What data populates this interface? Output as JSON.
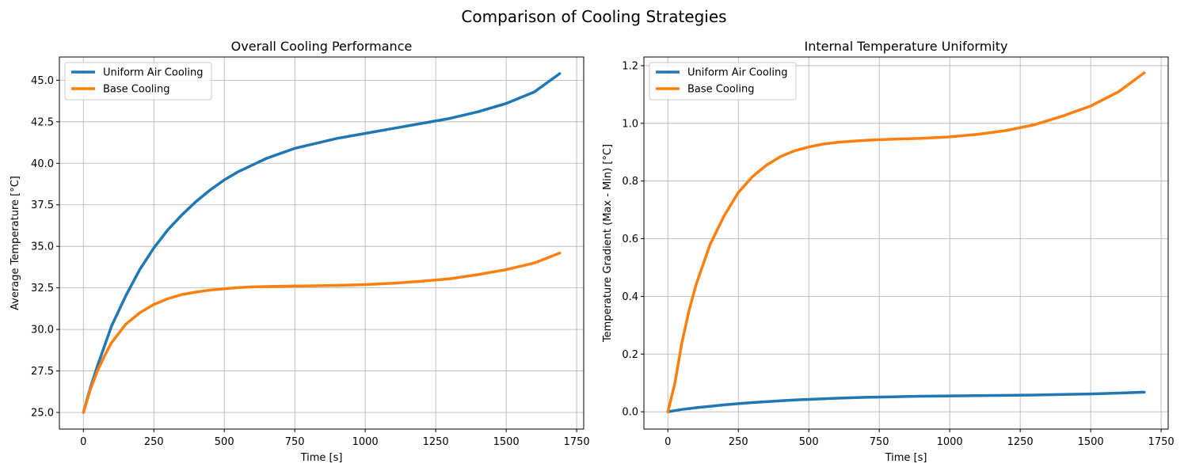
{
  "figure": {
    "suptitle": "Comparison of Cooling Strategies"
  },
  "chart_data": [
    {
      "type": "line",
      "title": "Overall Cooling Performance",
      "xlabel": "Time [s]",
      "ylabel": "Average Temperature [°C]",
      "xlim": [
        -85,
        1775
      ],
      "ylim": [
        24.0,
        46.4
      ],
      "xticks": [
        0,
        250,
        500,
        750,
        1000,
        1250,
        1500,
        1750
      ],
      "yticks": [
        25.0,
        27.5,
        30.0,
        32.5,
        35.0,
        37.5,
        40.0,
        42.5,
        45.0
      ],
      "ytick_decimals": 1,
      "grid": true,
      "legend": "top-left",
      "x": [
        0,
        25,
        50,
        75,
        100,
        150,
        200,
        250,
        300,
        350,
        400,
        450,
        500,
        550,
        600,
        650,
        700,
        750,
        800,
        900,
        1000,
        1100,
        1200,
        1300,
        1400,
        1500,
        1600,
        1690
      ],
      "series": [
        {
          "name": "Uniform Air Cooling",
          "color": "#1f77b4",
          "values": [
            25.0,
            26.5,
            27.8,
            29.0,
            30.2,
            32.0,
            33.6,
            34.9,
            36.0,
            36.9,
            37.7,
            38.4,
            39.0,
            39.5,
            39.9,
            40.3,
            40.6,
            40.9,
            41.1,
            41.5,
            41.8,
            42.1,
            42.4,
            42.7,
            43.1,
            43.6,
            44.3,
            45.4
          ]
        },
        {
          "name": "Base Cooling",
          "color": "#ff7f0e",
          "values": [
            25.0,
            26.4,
            27.5,
            28.4,
            29.2,
            30.3,
            31.0,
            31.5,
            31.85,
            32.1,
            32.25,
            32.37,
            32.45,
            32.52,
            32.56,
            32.58,
            32.6,
            32.61,
            32.62,
            32.65,
            32.7,
            32.78,
            32.9,
            33.05,
            33.3,
            33.6,
            34.0,
            34.6
          ]
        }
      ]
    },
    {
      "type": "line",
      "title": "Internal Temperature Uniformity",
      "xlabel": "Time [s]",
      "ylabel": "Temperature Gradient (Max - Min) [°C]",
      "xlim": [
        -85,
        1775
      ],
      "ylim": [
        -0.06,
        1.23
      ],
      "xticks": [
        0,
        250,
        500,
        750,
        1000,
        1250,
        1500,
        1750
      ],
      "yticks": [
        0.0,
        0.2,
        0.4,
        0.6,
        0.8,
        1.0,
        1.2
      ],
      "ytick_decimals": 1,
      "grid": true,
      "legend": "top-left",
      "x": [
        0,
        25,
        50,
        75,
        100,
        150,
        200,
        250,
        300,
        350,
        400,
        450,
        500,
        550,
        600,
        700,
        800,
        900,
        1000,
        1100,
        1200,
        1300,
        1400,
        1500,
        1600,
        1690
      ],
      "series": [
        {
          "name": "Uniform Air Cooling",
          "color": "#1f77b4",
          "values": [
            0.0,
            0.004,
            0.008,
            0.011,
            0.014,
            0.019,
            0.024,
            0.028,
            0.032,
            0.035,
            0.038,
            0.041,
            0.043,
            0.045,
            0.047,
            0.05,
            0.052,
            0.054,
            0.055,
            0.056,
            0.057,
            0.058,
            0.06,
            0.062,
            0.065,
            0.068
          ]
        },
        {
          "name": "Base Cooling",
          "color": "#ff7f0e",
          "values": [
            0.0,
            0.1,
            0.24,
            0.35,
            0.44,
            0.58,
            0.68,
            0.76,
            0.815,
            0.855,
            0.885,
            0.905,
            0.918,
            0.928,
            0.934,
            0.941,
            0.945,
            0.948,
            0.953,
            0.962,
            0.975,
            0.995,
            1.025,
            1.06,
            1.11,
            1.175
          ]
        }
      ]
    }
  ]
}
